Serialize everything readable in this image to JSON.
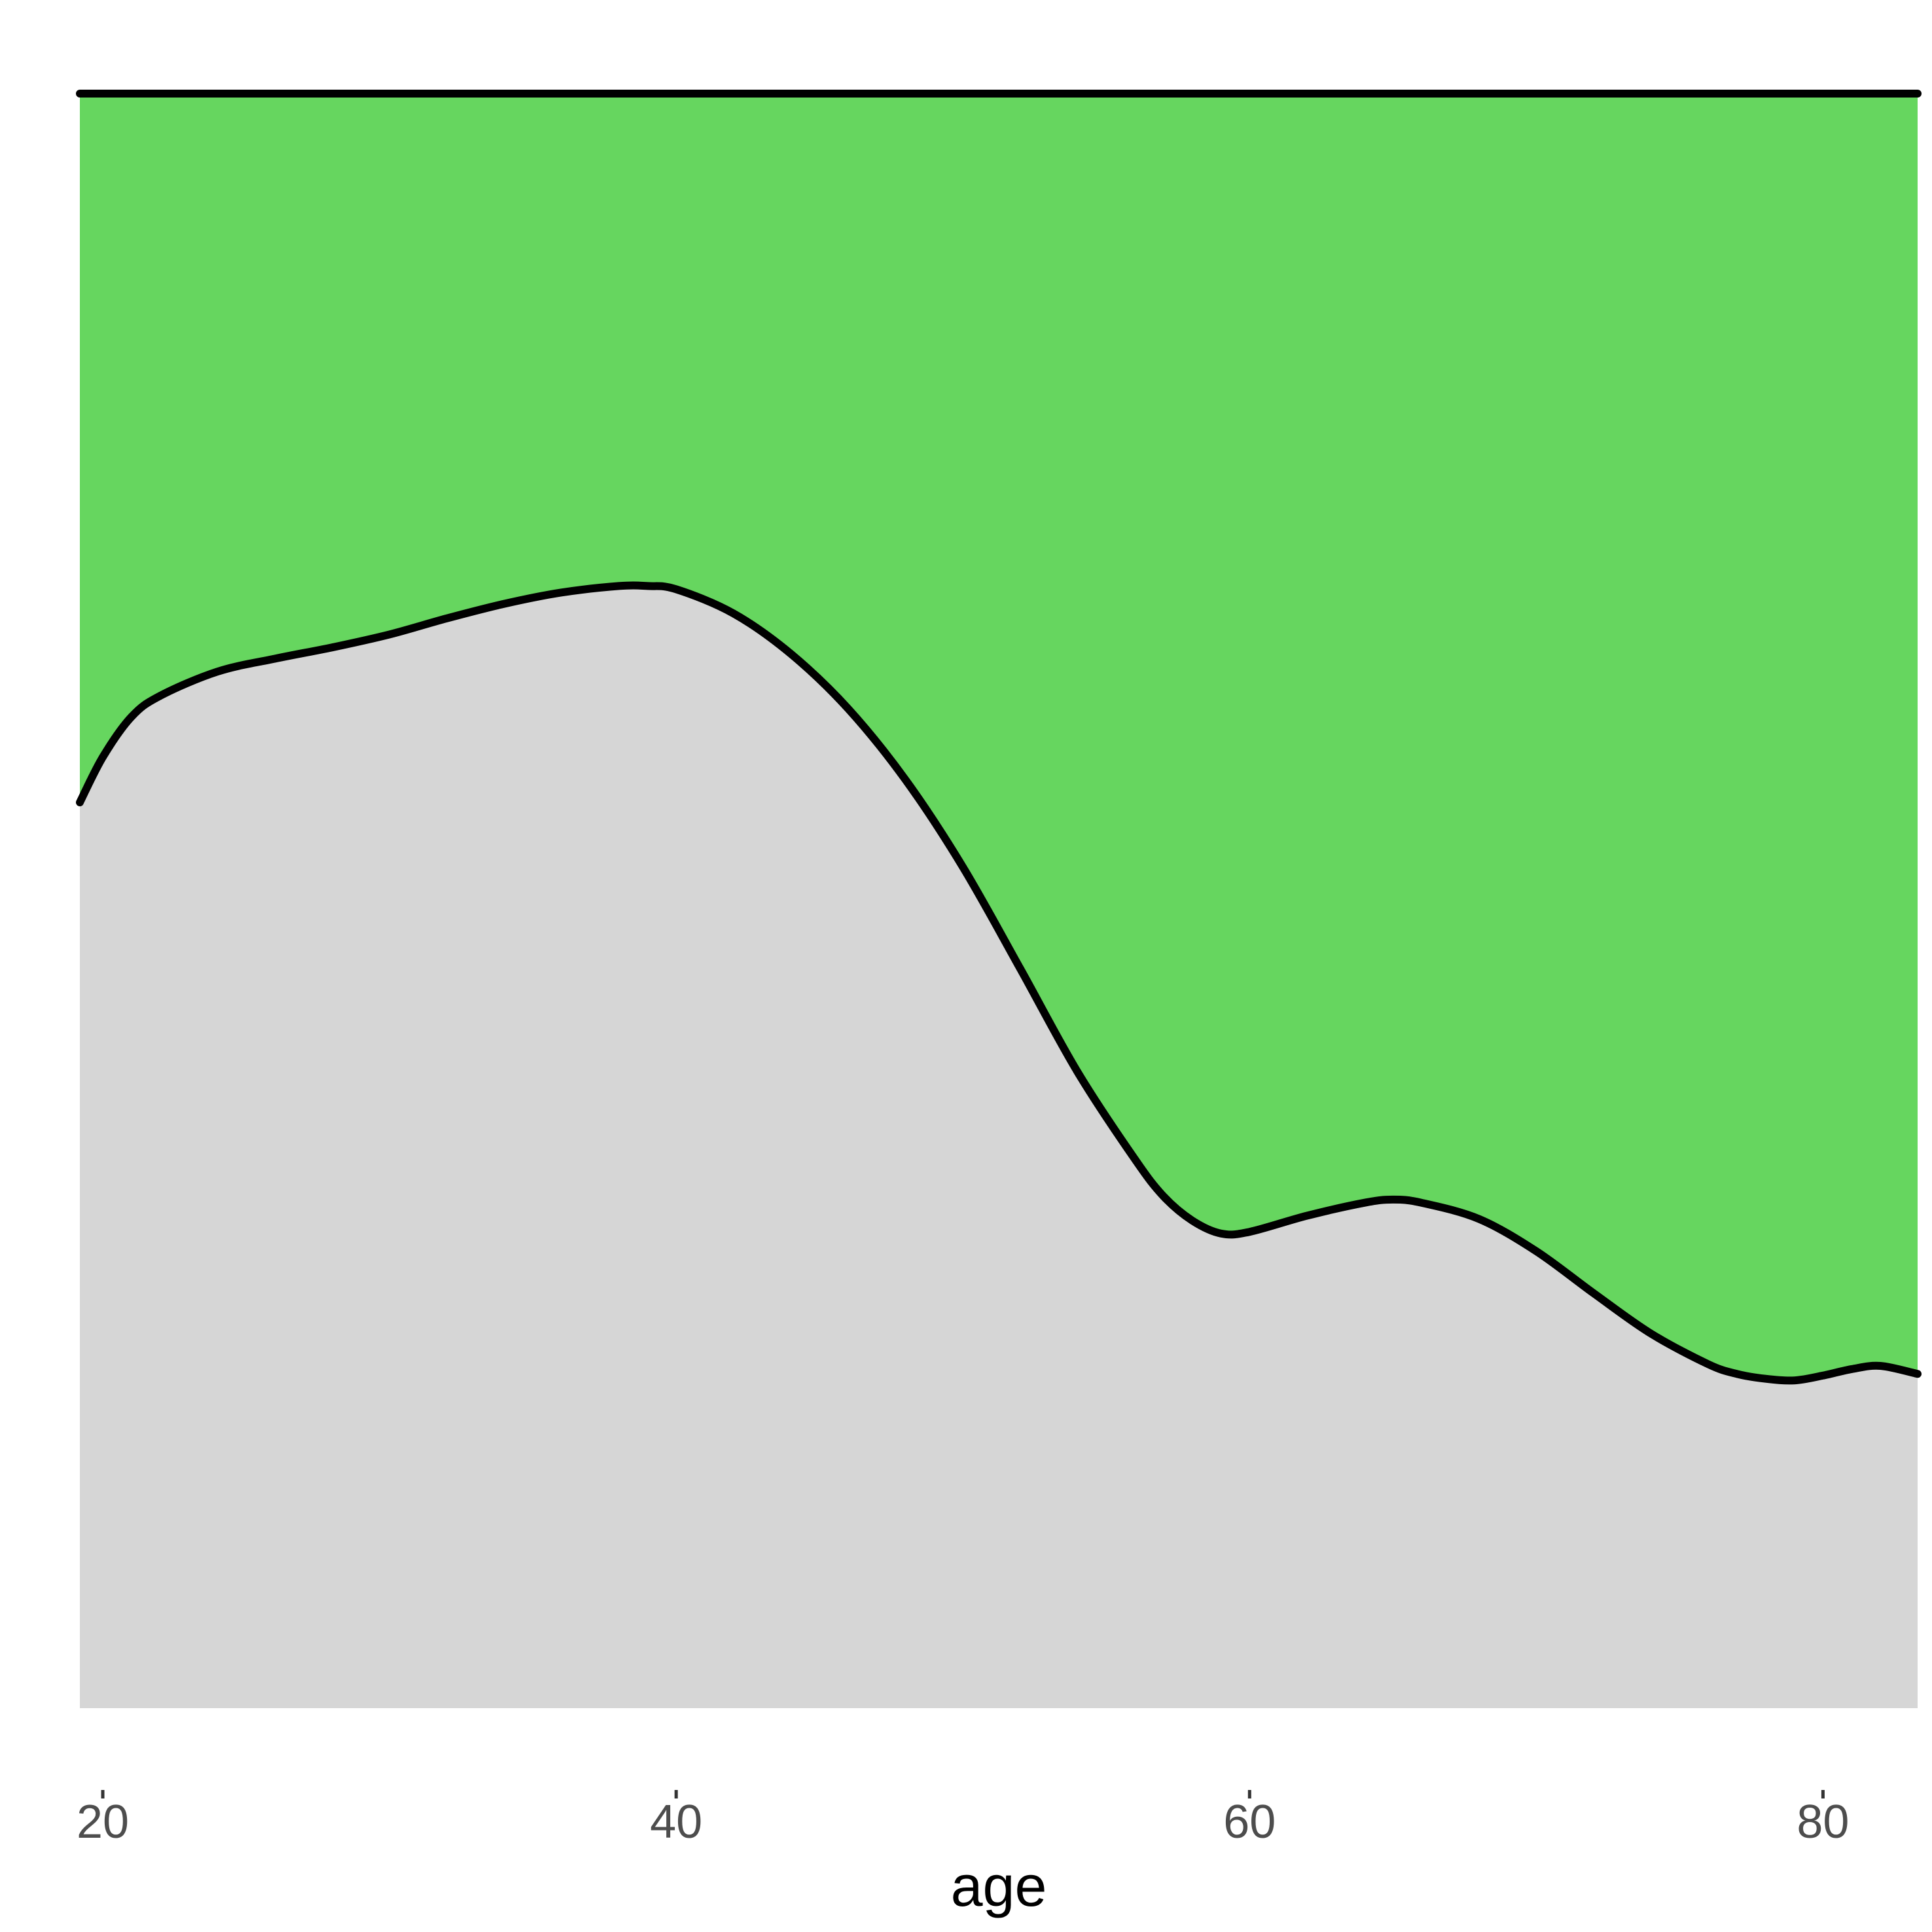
{
  "chart_data": {
    "type": "area",
    "stacking": "proportional",
    "title": "",
    "xlabel": "age",
    "ylabel": "",
    "xlim": [
      19.2,
      83.3
    ],
    "ylim": [
      0,
      1
    ],
    "x_ticks": [
      20,
      40,
      60,
      80
    ],
    "y_ticks": [],
    "grid": false,
    "legend": "none",
    "colors": {
      "lower": "#d6d6d6",
      "upper": "#66d65f",
      "line": "#000000"
    },
    "x": [
      19.2,
      20.0,
      21.0,
      22.0,
      24.0,
      26.0,
      28.0,
      30.0,
      32.0,
      34.0,
      36.0,
      38.0,
      39.0,
      40.0,
      42.0,
      44.0,
      46.0,
      48.0,
      50.0,
      52.0,
      54.0,
      56.0,
      57.0,
      58.0,
      59.0,
      60.0,
      62.0,
      64.0,
      65.0,
      66.0,
      68.0,
      70.0,
      72.0,
      74.0,
      76.0,
      77.0,
      78.0,
      79.0,
      80.0,
      81.0,
      82.0,
      83.3
    ],
    "series": [
      {
        "values": [
          0.561,
          0.589,
          0.614,
          0.627,
          0.642,
          0.65,
          0.657,
          0.665,
          0.675,
          0.684,
          0.691,
          0.695,
          0.695,
          0.693,
          0.678,
          0.653,
          0.619,
          0.575,
          0.521,
          0.458,
          0.394,
          0.34,
          0.317,
          0.302,
          0.294,
          0.295,
          0.305,
          0.313,
          0.315,
          0.313,
          0.303,
          0.283,
          0.257,
          0.232,
          0.213,
          0.207,
          0.204,
          0.203,
          0.206,
          0.21,
          0.212,
          0.207
        ]
      },
      {
        "values": [
          0.439,
          0.411,
          0.386,
          0.373,
          0.358,
          0.35,
          0.343,
          0.335,
          0.325,
          0.316,
          0.309,
          0.305,
          0.305,
          0.307,
          0.322,
          0.347,
          0.381,
          0.425,
          0.479,
          0.542,
          0.606,
          0.66,
          0.683,
          0.698,
          0.706,
          0.705,
          0.695,
          0.687,
          0.685,
          0.687,
          0.697,
          0.717,
          0.743,
          0.768,
          0.787,
          0.793,
          0.796,
          0.797,
          0.794,
          0.79,
          0.788,
          0.793
        ]
      }
    ]
  }
}
